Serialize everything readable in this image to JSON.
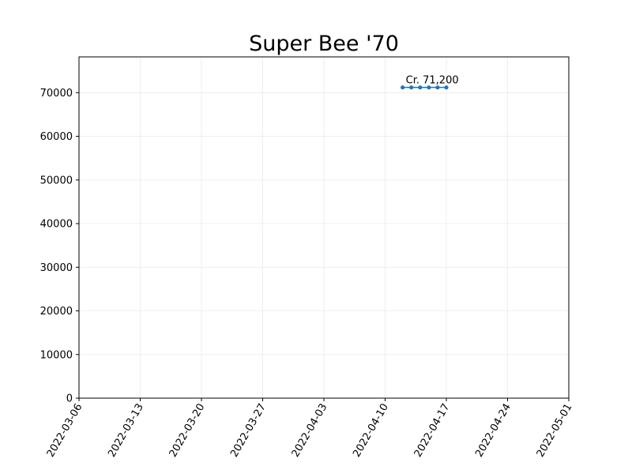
{
  "chart_data": {
    "type": "line",
    "title": "Super Bee '70",
    "xlabel": "",
    "ylabel": "",
    "x_type": "date",
    "xlim": [
      "2022-03-06",
      "2022-05-01"
    ],
    "ylim": [
      0,
      78200
    ],
    "x_ticks": [
      "2022-03-06",
      "2022-03-13",
      "2022-03-20",
      "2022-03-27",
      "2022-04-03",
      "2022-04-10",
      "2022-04-17",
      "2022-04-24",
      "2022-05-01"
    ],
    "y_ticks": [
      0,
      10000,
      20000,
      30000,
      40000,
      50000,
      60000,
      70000
    ],
    "grid": true,
    "series": [
      {
        "color": "#1f77b4",
        "x": [
          "2022-04-12",
          "2022-04-13",
          "2022-04-14",
          "2022-04-15",
          "2022-04-16",
          "2022-04-17"
        ],
        "y": [
          71200,
          71200,
          71200,
          71200,
          71200,
          71200
        ]
      }
    ],
    "annotations": [
      {
        "text": "Cr. 71,200",
        "x": "2022-04-12",
        "y": 71200
      }
    ]
  }
}
